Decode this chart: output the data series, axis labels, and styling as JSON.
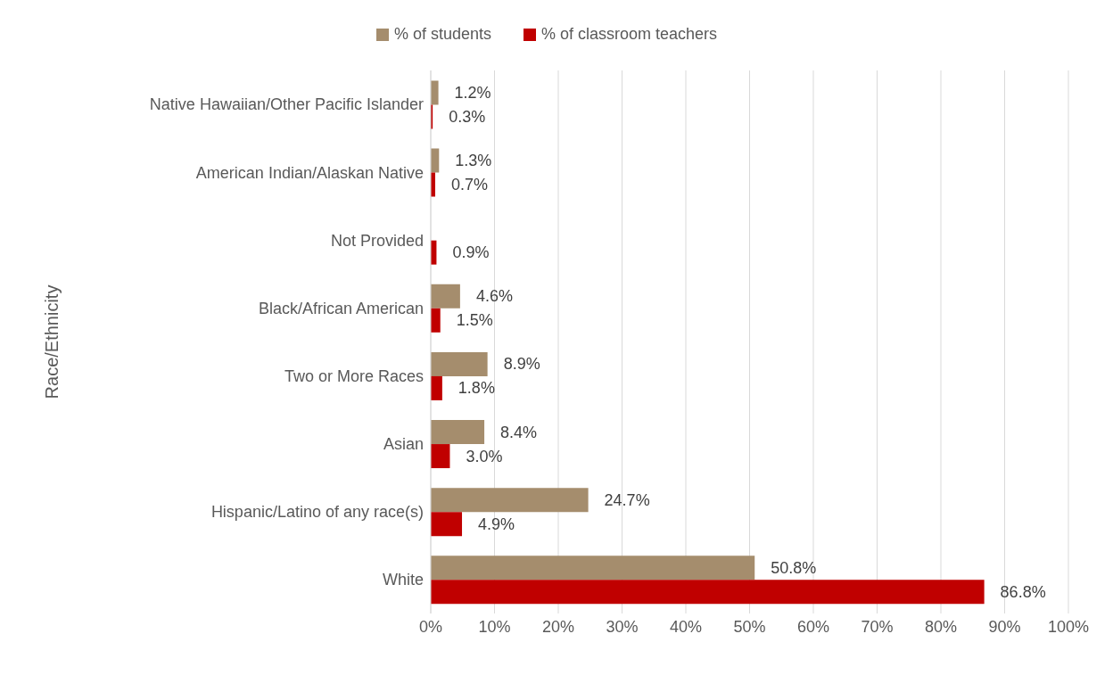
{
  "chart_data": {
    "type": "bar",
    "orientation": "horizontal",
    "ylabel": "Race/Ethnicity",
    "categories": [
      "Native Hawaiian/Other Pacific Islander",
      "American Indian/Alaskan Native",
      "Not Provided",
      "Black/African American",
      "Two or More Races",
      "Asian",
      "Hispanic/Latino of any race(s)",
      "White"
    ],
    "series": [
      {
        "name": "% of students",
        "color": "#a58d6d",
        "values": [
          1.2,
          1.3,
          null,
          4.6,
          8.9,
          8.4,
          24.7,
          50.8
        ],
        "value_labels": [
          "1.2%",
          "1.3%",
          null,
          "4.6%",
          "8.9%",
          "8.4%",
          "24.7%",
          "50.8%"
        ]
      },
      {
        "name": "% of classroom teachers",
        "color": "#c00000",
        "values": [
          0.3,
          0.7,
          0.9,
          1.5,
          1.8,
          3.0,
          4.9,
          86.8
        ],
        "value_labels": [
          "0.3%",
          "0.7%",
          "0.9%",
          "1.5%",
          "1.8%",
          "3.0%",
          "4.9%",
          "86.8%"
        ]
      }
    ],
    "xlim": [
      0,
      100
    ],
    "xticks": [
      {
        "value": 0,
        "label": "0%"
      },
      {
        "value": 10,
        "label": "10%"
      },
      {
        "value": 20,
        "label": "20%"
      },
      {
        "value": 30,
        "label": "30%"
      },
      {
        "value": 40,
        "label": "40%"
      },
      {
        "value": 50,
        "label": "50%"
      },
      {
        "value": 60,
        "label": "60%"
      },
      {
        "value": 70,
        "label": "70%"
      },
      {
        "value": 80,
        "label": "80%"
      },
      {
        "value": 90,
        "label": "90%"
      },
      {
        "value": 100,
        "label": "100%"
      }
    ],
    "grid": "x",
    "legend": "top"
  }
}
